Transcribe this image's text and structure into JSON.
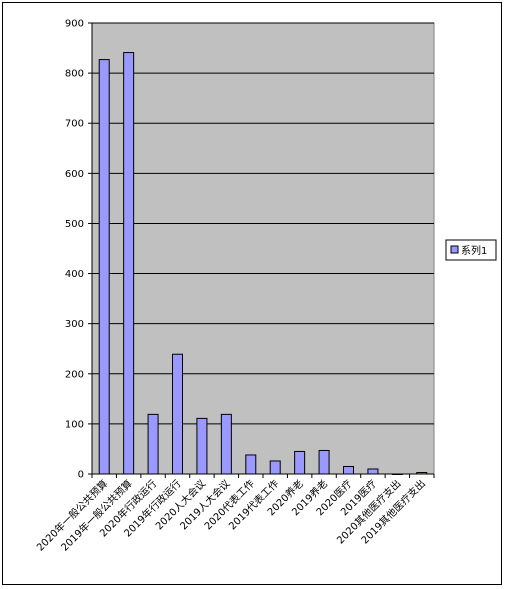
{
  "chart_data": {
    "type": "bar",
    "title": "",
    "xlabel": "",
    "ylabel": "",
    "ylim": [
      0,
      900
    ],
    "yticks": [
      0,
      100,
      200,
      300,
      400,
      500,
      600,
      700,
      800,
      900
    ],
    "grid": "horizontal",
    "legend_position": "right",
    "categories": [
      "2020年一般公共预算",
      "2019年一般公共预算",
      "2020年行政运行",
      "2019年行政运行",
      "2020人大会议",
      "2019人大会议",
      "2020代表工作",
      "2019代表工作",
      "2020养老",
      "2019养老",
      "2020医疗",
      "2019医疗",
      "2020其他医疗支出",
      "2019其他医疗支出"
    ],
    "series": [
      {
        "name": "系列1",
        "values": [
          827,
          841,
          119,
          239,
          111,
          119,
          38,
          26,
          45,
          47,
          15,
          10,
          0,
          3
        ]
      }
    ],
    "colors": {
      "bar_fill": "#9999ff",
      "bar_stroke": "#000000",
      "plot_background": "#c0c0c0",
      "gridline": "#000000"
    }
  }
}
